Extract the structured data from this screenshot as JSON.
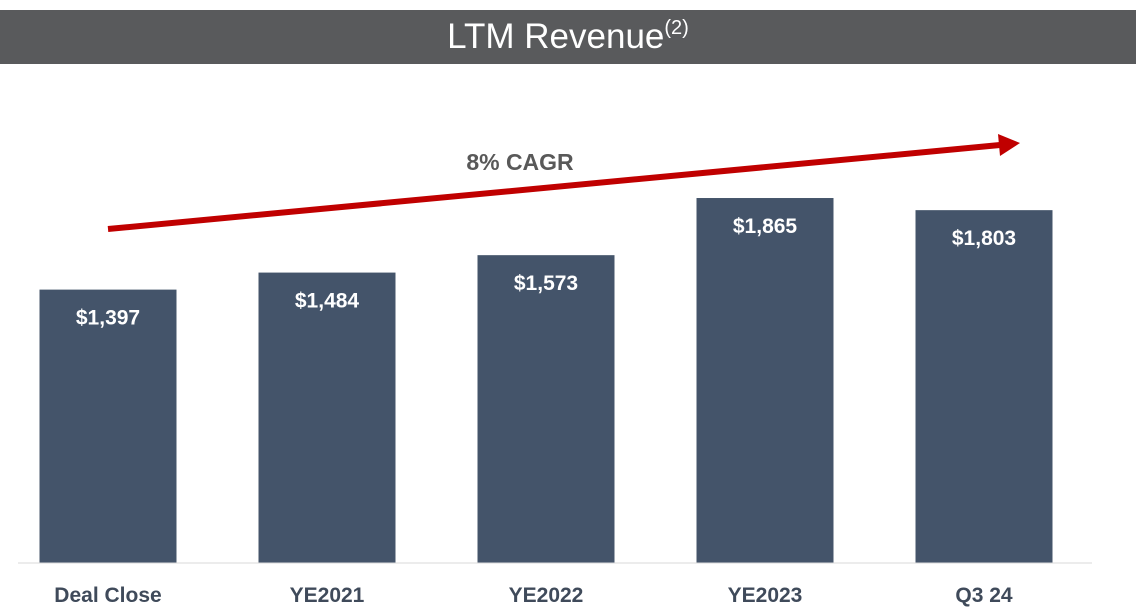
{
  "header": {
    "title": "LTM Revenue",
    "title_sup": "(2)"
  },
  "chart_data": {
    "type": "bar",
    "title": "LTM Revenue(2)",
    "categories": [
      "Deal Close",
      "YE2021",
      "YE2022",
      "YE2023",
      "Q3 24"
    ],
    "values": [
      1397,
      1484,
      1573,
      1865,
      1803
    ],
    "data_labels": [
      "$1,397",
      "$1,484",
      "$1,573",
      "$1,865",
      "$1,803"
    ],
    "annotation": "8% CAGR",
    "bar_color": "#44546a",
    "arrow_color": "#c00000",
    "ylim": [
      0,
      2100
    ],
    "grid": false,
    "legend": "none"
  }
}
